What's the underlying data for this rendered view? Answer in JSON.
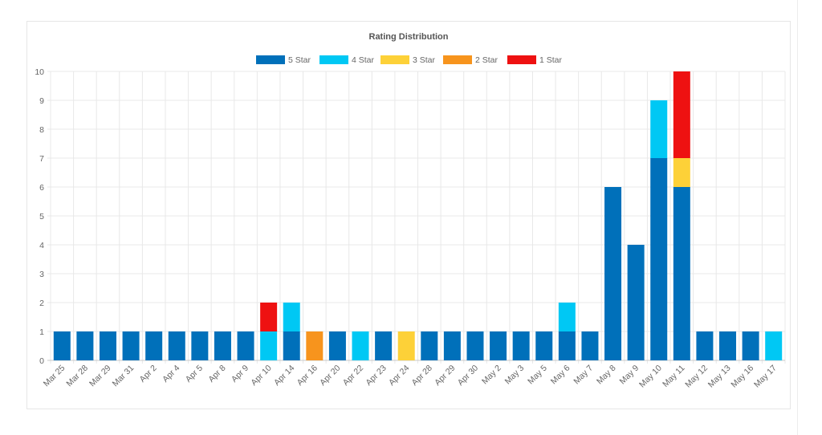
{
  "chart_data": {
    "type": "bar",
    "stacked": true,
    "title": "Rating Distribution",
    "categories": [
      "Mar 25",
      "Mar 28",
      "Mar 29",
      "Mar 31",
      "Apr 2",
      "Apr 4",
      "Apr 5",
      "Apr 8",
      "Apr 9",
      "Apr 10",
      "Apr 14",
      "Apr 16",
      "Apr 20",
      "Apr 22",
      "Apr 23",
      "Apr 24",
      "Apr 28",
      "Apr 29",
      "Apr 30",
      "May 2",
      "May 3",
      "May 5",
      "May 6",
      "May 7",
      "May 8",
      "May 9",
      "May 10",
      "May 11",
      "May 12",
      "May 13",
      "May 16",
      "May 17"
    ],
    "series": [
      {
        "name": "5 Star",
        "color": "#0070ba",
        "values": [
          1,
          1,
          1,
          1,
          1,
          1,
          1,
          1,
          1,
          0,
          1,
          0,
          1,
          0,
          1,
          0,
          1,
          1,
          1,
          1,
          1,
          1,
          1,
          1,
          6,
          4,
          7,
          6,
          1,
          1,
          1,
          0
        ]
      },
      {
        "name": "4 Star",
        "color": "#00c8f4",
        "values": [
          0,
          0,
          0,
          0,
          0,
          0,
          0,
          0,
          0,
          1,
          1,
          0,
          0,
          1,
          0,
          0,
          0,
          0,
          0,
          0,
          0,
          0,
          1,
          0,
          0,
          0,
          2,
          0,
          0,
          0,
          0,
          1
        ]
      },
      {
        "name": "3 Star",
        "color": "#fdd138",
        "values": [
          0,
          0,
          0,
          0,
          0,
          0,
          0,
          0,
          0,
          0,
          0,
          0,
          0,
          0,
          0,
          1,
          0,
          0,
          0,
          0,
          0,
          0,
          0,
          0,
          0,
          0,
          0,
          1,
          0,
          0,
          0,
          0
        ]
      },
      {
        "name": "2 Star",
        "color": "#f7941d",
        "values": [
          0,
          0,
          0,
          0,
          0,
          0,
          0,
          0,
          0,
          0,
          0,
          1,
          0,
          0,
          0,
          0,
          0,
          0,
          0,
          0,
          0,
          0,
          0,
          0,
          0,
          0,
          0,
          0,
          0,
          0,
          0,
          0
        ]
      },
      {
        "name": "1 Star",
        "color": "#ee1111",
        "values": [
          0,
          0,
          0,
          0,
          0,
          0,
          0,
          0,
          0,
          1,
          0,
          0,
          0,
          0,
          0,
          0,
          0,
          0,
          0,
          0,
          0,
          0,
          0,
          0,
          0,
          0,
          0,
          3,
          0,
          0,
          0,
          0
        ]
      }
    ],
    "ylim": [
      0,
      10
    ],
    "yticks": [
      "0",
      "1",
      "2",
      "3",
      "4",
      "5",
      "6",
      "7",
      "8",
      "9",
      "10"
    ],
    "legend_position": "top",
    "grid": true
  }
}
